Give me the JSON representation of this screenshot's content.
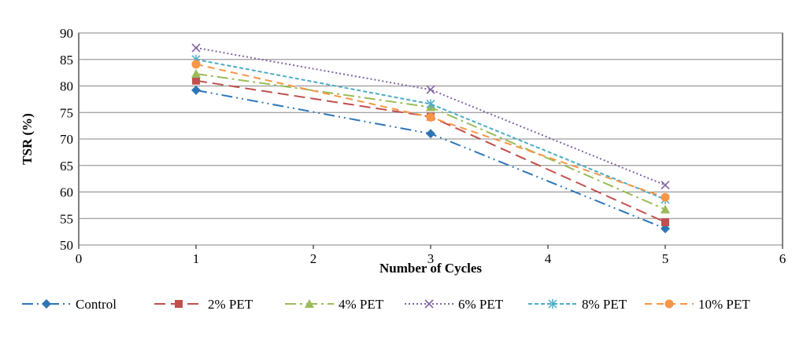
{
  "chart_data": {
    "type": "line",
    "title": "",
    "xlabel": "Number of Cycles",
    "ylabel": "TSR (%)",
    "xlim": [
      0,
      6
    ],
    "ylim": [
      50,
      90
    ],
    "x_ticks": [
      "0",
      "1",
      "2",
      "3",
      "4",
      "5",
      "6"
    ],
    "y_ticks": [
      "50",
      "55",
      "60",
      "65",
      "70",
      "75",
      "80",
      "85",
      "90"
    ],
    "grid": true,
    "legend_position": "bottom",
    "x": [
      1,
      3,
      5
    ],
    "series": [
      {
        "name": "Control",
        "values": [
          79.2,
          71.0,
          53.1
        ],
        "color": "#2E75B6",
        "marker": "diamond",
        "dash": "dash-dot-dot"
      },
      {
        "name": "2% PET",
        "values": [
          81.0,
          74.2,
          54.3
        ],
        "color": "#C0504D",
        "marker": "square",
        "dash": "long-dash"
      },
      {
        "name": "4% PET",
        "values": [
          82.3,
          76.0,
          56.7
        ],
        "color": "#9BBB59",
        "marker": "triangle",
        "dash": "long-dash-dot"
      },
      {
        "name": "6% PET",
        "values": [
          87.2,
          79.3,
          61.3
        ],
        "color": "#8064A2",
        "marker": "x",
        "dash": "dotted"
      },
      {
        "name": "8% PET",
        "values": [
          85.0,
          76.6,
          58.6
        ],
        "color": "#4BACC6",
        "marker": "star",
        "dash": "short-dash"
      },
      {
        "name": "10% PET",
        "values": [
          84.1,
          74.1,
          59.0
        ],
        "color": "#F79646",
        "marker": "circle",
        "dash": "dashed"
      }
    ]
  }
}
